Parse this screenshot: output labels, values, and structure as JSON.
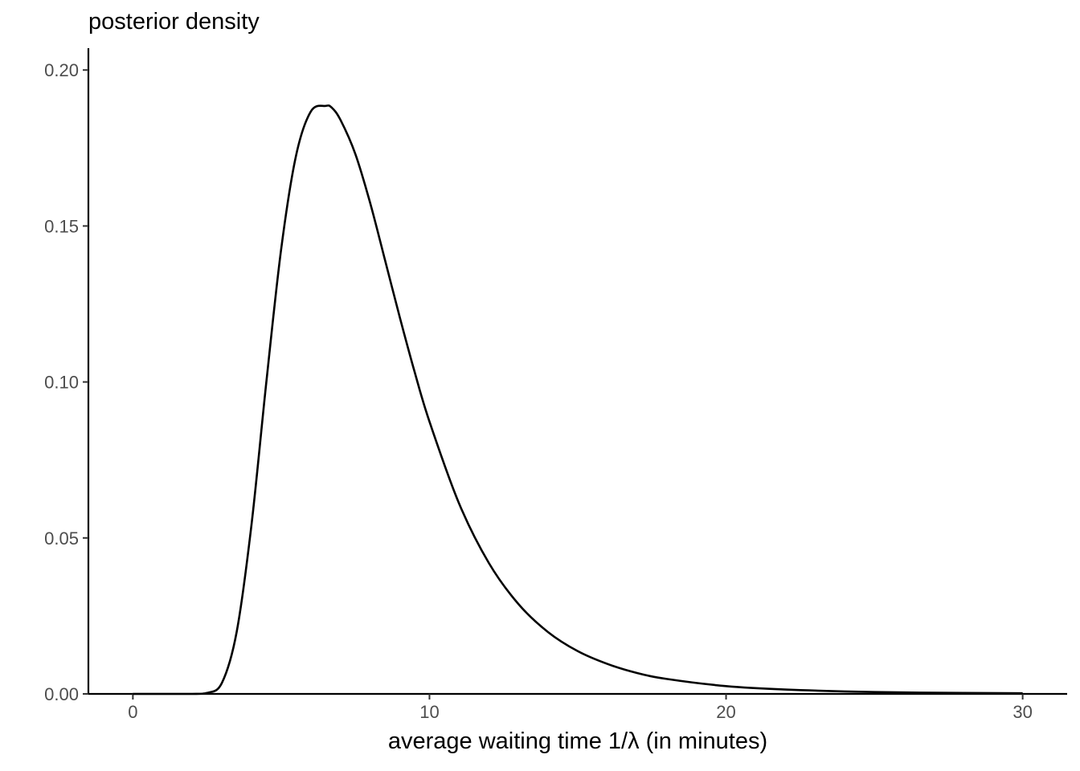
{
  "chart_data": {
    "type": "line",
    "title": "posterior density",
    "xlabel": "average waiting time 1/λ (in minutes)",
    "ylabel": "",
    "xlim": [
      -1.5,
      31.5
    ],
    "ylim": [
      0,
      0.207
    ],
    "x_ticks": [
      0,
      10,
      20,
      30
    ],
    "x_tick_labels": [
      "0",
      "10",
      "20",
      "30"
    ],
    "y_ticks": [
      0,
      0.05,
      0.1,
      0.15,
      0.2
    ],
    "y_tick_labels": [
      "0.00",
      "0.05",
      "0.10",
      "0.15",
      "0.20"
    ],
    "grid": false,
    "legend": "none",
    "series": [
      {
        "color": "#000000",
        "x": [
          0,
          2,
          2.5,
          3,
          3.5,
          4,
          4.5,
          5,
          5.5,
          6,
          6.5,
          6.7,
          7,
          7.5,
          8,
          8.5,
          9,
          9.5,
          10,
          11,
          12,
          13,
          14,
          15,
          16,
          17,
          18,
          20,
          22,
          25,
          28,
          30
        ],
        "y": [
          0,
          0,
          0.0003,
          0.0035,
          0.0199,
          0.0543,
          0.1,
          0.1426,
          0.1725,
          0.1867,
          0.1885,
          0.188,
          0.184,
          0.1731,
          0.1574,
          0.1391,
          0.1207,
          0.1032,
          0.0873,
          0.061,
          0.042,
          0.0288,
          0.0198,
          0.0137,
          0.0096,
          0.0067,
          0.0048,
          0.0025,
          0.0014,
          0.0006,
          0.0003,
          0.0002
        ]
      }
    ]
  }
}
